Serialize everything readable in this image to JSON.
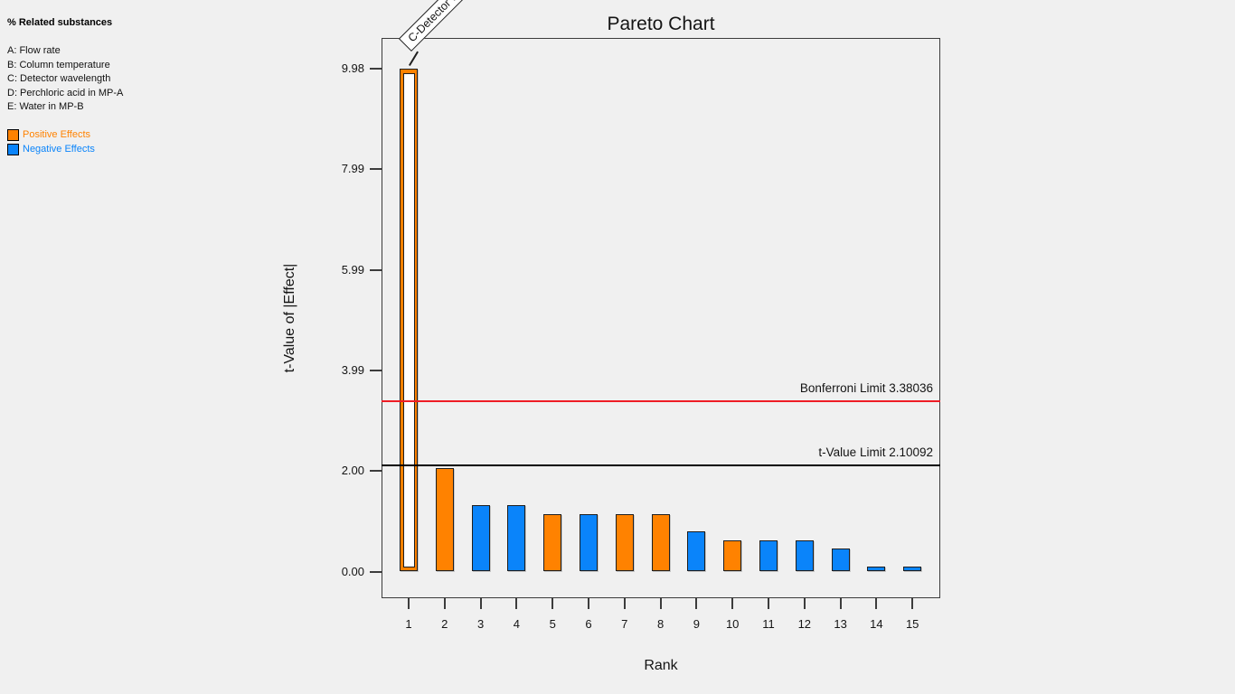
{
  "sidebar": {
    "response_label": "% Related substances",
    "factors": [
      {
        "label": "A: Flow rate"
      },
      {
        "label": "B: Column temperature"
      },
      {
        "label": "C: Detector wavelength"
      },
      {
        "label": "D: Perchloric acid in MP-A"
      },
      {
        "label": "E: Water in MP-B"
      }
    ],
    "legend": [
      {
        "label": "Positive Effects",
        "color": "#ff8200"
      },
      {
        "label": "Negative Effects",
        "color": "#0a84fa"
      }
    ]
  },
  "chart_data": {
    "type": "bar",
    "title": "Pareto Chart",
    "xlabel": "Rank",
    "ylabel": "t-Value of |Effect|",
    "ylim": [
      0,
      9.98
    ],
    "yticks": [
      {
        "value": 0.0,
        "label": "0.00"
      },
      {
        "value": 2.0,
        "label": "2.00"
      },
      {
        "value": 3.99,
        "label": "3.99"
      },
      {
        "value": 5.99,
        "label": "5.99"
      },
      {
        "value": 7.99,
        "label": "7.99"
      },
      {
        "value": 9.98,
        "label": "9.98"
      }
    ],
    "bars": [
      {
        "rank": 1,
        "t_value": 9.98,
        "sign": "positive",
        "style": "hollow"
      },
      {
        "rank": 2,
        "t_value": 2.05,
        "sign": "positive",
        "style": "solid"
      },
      {
        "rank": 3,
        "t_value": 1.32,
        "sign": "negative",
        "style": "solid"
      },
      {
        "rank": 4,
        "t_value": 1.32,
        "sign": "negative",
        "style": "solid"
      },
      {
        "rank": 5,
        "t_value": 1.14,
        "sign": "positive",
        "style": "solid"
      },
      {
        "rank": 6,
        "t_value": 1.14,
        "sign": "negative",
        "style": "solid"
      },
      {
        "rank": 7,
        "t_value": 1.14,
        "sign": "positive",
        "style": "solid"
      },
      {
        "rank": 8,
        "t_value": 1.14,
        "sign": "positive",
        "style": "solid"
      },
      {
        "rank": 9,
        "t_value": 0.8,
        "sign": "negative",
        "style": "solid"
      },
      {
        "rank": 10,
        "t_value": 0.62,
        "sign": "positive",
        "style": "solid"
      },
      {
        "rank": 11,
        "t_value": 0.62,
        "sign": "negative",
        "style": "solid"
      },
      {
        "rank": 12,
        "t_value": 0.62,
        "sign": "negative",
        "style": "solid"
      },
      {
        "rank": 13,
        "t_value": 0.45,
        "sign": "negative",
        "style": "solid"
      },
      {
        "rank": 14,
        "t_value": 0.09,
        "sign": "negative",
        "style": "solid"
      },
      {
        "rank": 15,
        "t_value": 0.09,
        "sign": "negative",
        "style": "solid"
      }
    ],
    "annotation": {
      "bar_rank": 1,
      "label": "C-Detector wavelength"
    },
    "reference_lines": [
      {
        "label": "Bonferroni Limit 3.38036",
        "value": 3.38036,
        "color": "#ee1c25"
      },
      {
        "label": "t-Value Limit 2.10092",
        "value": 2.10092,
        "color": "#000000"
      }
    ],
    "colors": {
      "positive": "#ff8200",
      "negative": "#0a84fa",
      "background": "#f0f0f0"
    },
    "legend_position": "top-left-panel",
    "grid": false
  }
}
